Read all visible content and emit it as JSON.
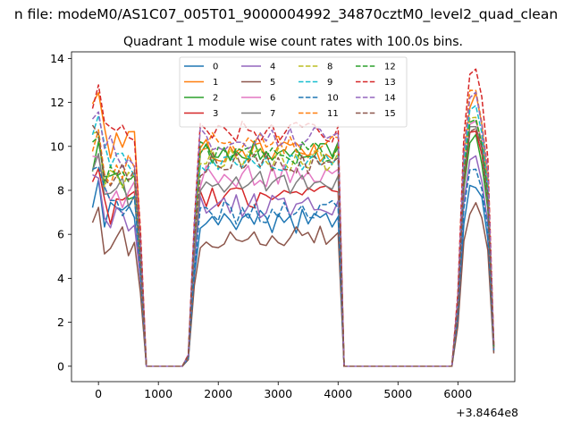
{
  "figure_title": "n file: modeM0/AS1C07_005T01_9000004992_34870cztM0_level2_quad_clean",
  "chart_data": {
    "type": "line",
    "title": "Quadrant 1 module wise count rates with 100.0s bins.",
    "xlabel": "",
    "ylabel": "",
    "x_offset_label": "+3.8464e8",
    "xlim": [
      -450,
      6950
    ],
    "ylim": [
      -0.7,
      14.3
    ],
    "x_ticks": [
      0,
      1000,
      2000,
      3000,
      4000,
      5000,
      6000
    ],
    "x_tick_labels": [
      "0",
      "1000",
      "2000",
      "3000",
      "4000",
      "5000",
      "6000"
    ],
    "y_ticks": [
      0,
      2,
      4,
      6,
      8,
      10,
      12,
      14
    ],
    "y_tick_labels": [
      "0",
      "2",
      "4",
      "6",
      "8",
      "10",
      "12",
      "14"
    ],
    "grid": false,
    "legend_placement": "top-center",
    "legend_columns": 4,
    "x": [
      -100,
      0,
      100,
      200,
      300,
      400,
      500,
      600,
      700,
      800,
      900,
      1000,
      1100,
      1200,
      1300,
      1400,
      1500,
      1600,
      1700,
      1800,
      1900,
      2000,
      2100,
      2200,
      2300,
      2400,
      2500,
      2600,
      2700,
      2800,
      2900,
      3000,
      3100,
      3200,
      3300,
      3400,
      3500,
      3600,
      3700,
      3800,
      3900,
      4000,
      4100,
      4200,
      4300,
      4400,
      4500,
      4600,
      4700,
      4800,
      4900,
      5000,
      5100,
      5200,
      5300,
      5400,
      5500,
      5600,
      5700,
      5800,
      5900,
      6000,
      6100,
      6200,
      6300,
      6400,
      6500,
      6600
    ],
    "series": [
      {
        "name": "0",
        "color": "#1f77b4",
        "dash": false,
        "base": 7.8,
        "post": 6.6,
        "end": 8.3
      },
      {
        "name": "1",
        "color": "#ff7f0e",
        "dash": false,
        "base": 11.8,
        "post": 9.8,
        "end": 12.2
      },
      {
        "name": "2",
        "color": "#2ca02c",
        "dash": false,
        "base": 9.6,
        "post": 9.9,
        "end": 10.4
      },
      {
        "name": "3",
        "color": "#d62728",
        "dash": false,
        "base": 8.4,
        "post": 7.7,
        "end": 10.8
      },
      {
        "name": "4",
        "color": "#9467bd",
        "dash": false,
        "base": 8.0,
        "post": 7.3,
        "end": 9.6
      },
      {
        "name": "5",
        "color": "#8c564b",
        "dash": false,
        "base": 6.7,
        "post": 5.9,
        "end": 7.3
      },
      {
        "name": "6",
        "color": "#e377c2",
        "dash": false,
        "base": 9.0,
        "post": 8.7,
        "end": 11.2
      },
      {
        "name": "7",
        "color": "#7f7f7f",
        "dash": false,
        "base": 9.2,
        "post": 8.4,
        "end": 11.0
      },
      {
        "name": "8",
        "color": "#bcbd22",
        "dash": true,
        "base": 10.2,
        "post": 9.4,
        "end": 11.4
      },
      {
        "name": "9",
        "color": "#17becf",
        "dash": true,
        "base": 11.0,
        "post": 9.3,
        "end": 11.8
      },
      {
        "name": "10",
        "color": "#1f77b4",
        "dash": true,
        "base": 8.7,
        "post": 7.0,
        "end": 9.2
      },
      {
        "name": "11",
        "color": "#ff7f0e",
        "dash": true,
        "base": 10.4,
        "post": 10.1,
        "end": 12.6
      },
      {
        "name": "12",
        "color": "#2ca02c",
        "dash": true,
        "base": 10.1,
        "post": 9.7,
        "end": 11.3
      },
      {
        "name": "13",
        "color": "#d62728",
        "dash": true,
        "base": 12.5,
        "post": 10.6,
        "end": 13.4
      },
      {
        "name": "14",
        "color": "#9467bd",
        "dash": true,
        "base": 11.3,
        "post": 10.3,
        "end": 12.4
      },
      {
        "name": "15",
        "color": "#8c564b",
        "dash": true,
        "base": 10.3,
        "post": 9.2,
        "end": 10.9
      }
    ]
  }
}
